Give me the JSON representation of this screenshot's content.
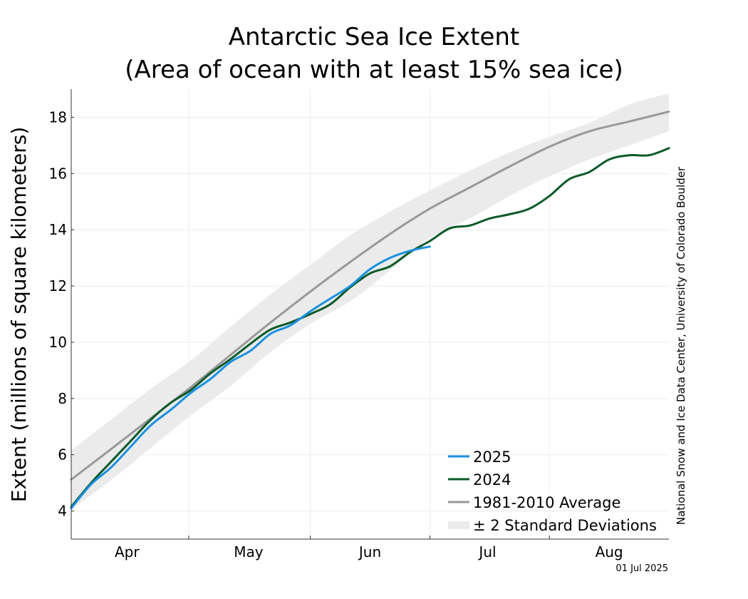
{
  "chart_data": {
    "type": "line",
    "title": "Antarctic Sea Ice Extent",
    "subtitle": "(Area of ocean with at least 15% sea ice)",
    "ylabel": "Extent (millions of square kilometers)",
    "xlabel": "",
    "ylim": [
      3,
      19
    ],
    "xlim": [
      0,
      150
    ],
    "yticks": [
      4,
      6,
      8,
      10,
      12,
      14,
      16,
      18
    ],
    "month_labels": [
      {
        "label": "Apr",
        "x": 14
      },
      {
        "label": "May",
        "x": 44.5
      },
      {
        "label": "Jun",
        "x": 75
      },
      {
        "label": "Jul",
        "x": 104.5
      },
      {
        "label": "Aug",
        "x": 135
      }
    ],
    "month_boundaries": [
      29.5,
      60,
      90,
      120
    ],
    "grid": true,
    "legend_position": "bottom-right",
    "credit": "National Snow and Ice Data Center, University of Colorado Boulder",
    "date": "01 Jul 2025",
    "band": {
      "name": "± 2 Standard Deviations",
      "color": "#ebebeb",
      "x": [
        0,
        10,
        20,
        30,
        40,
        50,
        60,
        70,
        80,
        90,
        100,
        110,
        120,
        130,
        140,
        150
      ],
      "upper": [
        6.15,
        7.25,
        8.35,
        9.35,
        10.55,
        11.7,
        12.75,
        13.8,
        14.65,
        15.4,
        16.1,
        16.75,
        17.3,
        17.8,
        18.45,
        18.85
      ],
      "lower": [
        4.05,
        5.1,
        6.25,
        7.4,
        8.45,
        9.65,
        10.65,
        11.45,
        12.55,
        13.7,
        14.4,
        15.2,
        15.9,
        16.5,
        17.0,
        17.5
      ]
    },
    "series": [
      {
        "name": "1981-2010 Average",
        "color": "#999999",
        "x": [
          0,
          10,
          20,
          30,
          40,
          50,
          60,
          70,
          80,
          90,
          100,
          110,
          120,
          130,
          140,
          150
        ],
        "values": [
          5.12,
          6.2,
          7.3,
          8.4,
          9.55,
          10.7,
          11.8,
          12.85,
          13.85,
          14.75,
          15.5,
          16.25,
          16.95,
          17.5,
          17.85,
          18.2
        ]
      },
      {
        "name": "2024",
        "color": "#0a5a28",
        "x": [
          0,
          5,
          10,
          15,
          20,
          25,
          30,
          35,
          40,
          45,
          50,
          55,
          60,
          65,
          70,
          75,
          80,
          85,
          90,
          95,
          100,
          105,
          110,
          115,
          120,
          125,
          130,
          135,
          140,
          145,
          150
        ],
        "values": [
          4.15,
          5.0,
          5.75,
          6.5,
          7.25,
          7.85,
          8.3,
          8.9,
          9.4,
          9.95,
          10.45,
          10.7,
          11.0,
          11.35,
          11.95,
          12.45,
          12.7,
          13.2,
          13.6,
          14.05,
          14.15,
          14.4,
          14.55,
          14.75,
          15.2,
          15.8,
          16.05,
          16.5,
          16.65,
          16.65,
          16.9
        ]
      },
      {
        "name": "2025",
        "color": "#1a90e0",
        "x": [
          0,
          5,
          10,
          15,
          20,
          25,
          30,
          35,
          40,
          45,
          50,
          55,
          60,
          65,
          70,
          75,
          80,
          85,
          90
        ],
        "values": [
          4.1,
          4.95,
          5.55,
          6.3,
          7.05,
          7.6,
          8.2,
          8.7,
          9.3,
          9.7,
          10.3,
          10.6,
          11.1,
          11.55,
          12.0,
          12.6,
          13.0,
          13.25,
          13.4
        ]
      }
    ],
    "legend": [
      {
        "label": "2025",
        "color": "#1a90e0",
        "kind": "line"
      },
      {
        "label": "2024",
        "color": "#0a5a28",
        "kind": "line"
      },
      {
        "label": "1981-2010 Average",
        "color": "#999999",
        "kind": "line"
      },
      {
        "label": "± 2 Standard Deviations",
        "color": "#ebebeb",
        "kind": "band"
      }
    ]
  }
}
